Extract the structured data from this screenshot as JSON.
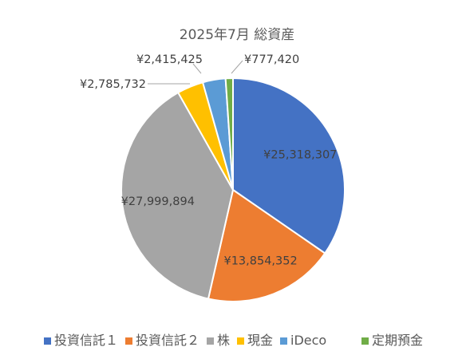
{
  "chart_data": {
    "type": "pie",
    "title": "2025年7月 総資産",
    "categories": [
      "投資信託１",
      "投資信託２",
      "株",
      "現金",
      "iDeco",
      "定期預金"
    ],
    "values": [
      25318307,
      13854352,
      27999894,
      2785732,
      2415425,
      777420
    ],
    "data_labels": [
      "¥25,318,307",
      "¥13,854,352",
      "¥27,999,894",
      "¥2,785,732",
      "¥2,415,425",
      "¥777,420"
    ],
    "colors": [
      "#4472c4",
      "#ed7d31",
      "#a5a5a5",
      "#ffc000",
      "#5b9bd5",
      "#70ad47"
    ],
    "legend_position": "bottom",
    "start": "12 o'clock, clockwise"
  }
}
